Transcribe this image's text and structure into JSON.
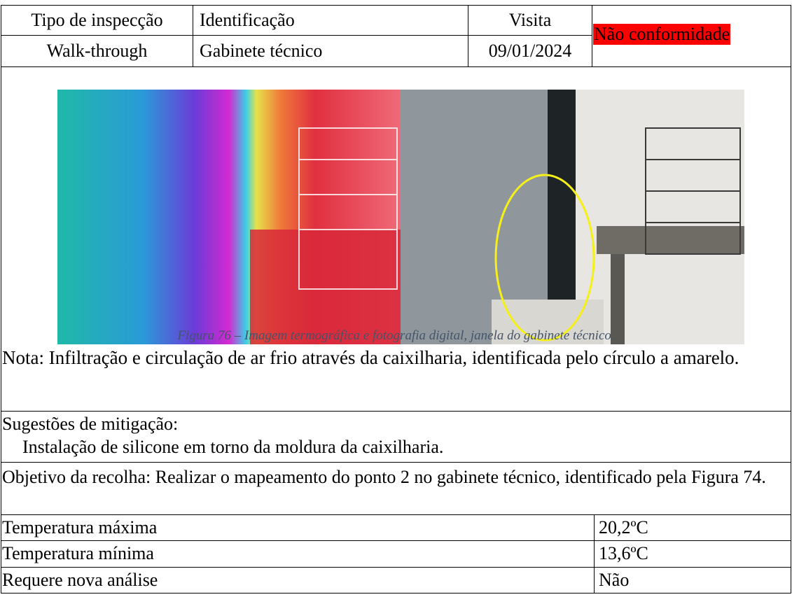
{
  "header": {
    "labels": [
      "Tipo de inspecção",
      "Identificação",
      "Visita"
    ],
    "values": [
      "Walk-through",
      "Gabinete técnico",
      "09/01/2024"
    ],
    "status": "Não conformidade"
  },
  "figure": {
    "caption": "Figura 76 – Imagem termográfica e fotografia digital, janela do gabinete técnico."
  },
  "note": "Nota: Infiltração e circulação de ar frio através da caixilharia, identificada pelo círculo a amarelo.",
  "mitigation": {
    "title": "Sugestões de mitigação:",
    "text": "Instalação de silicone em torno da moldura da caixilharia."
  },
  "objective": "Objetivo da recolha: Realizar o mapeamento do ponto 2 no gabinete técnico, identificado pela Figura 74.",
  "results": {
    "rows": [
      [
        "Temperatura máxima",
        "20,2ºC"
      ],
      [
        "Temperatura mínima",
        "13,6ºC"
      ],
      [
        "Requere nova análise",
        "Não"
      ]
    ]
  }
}
